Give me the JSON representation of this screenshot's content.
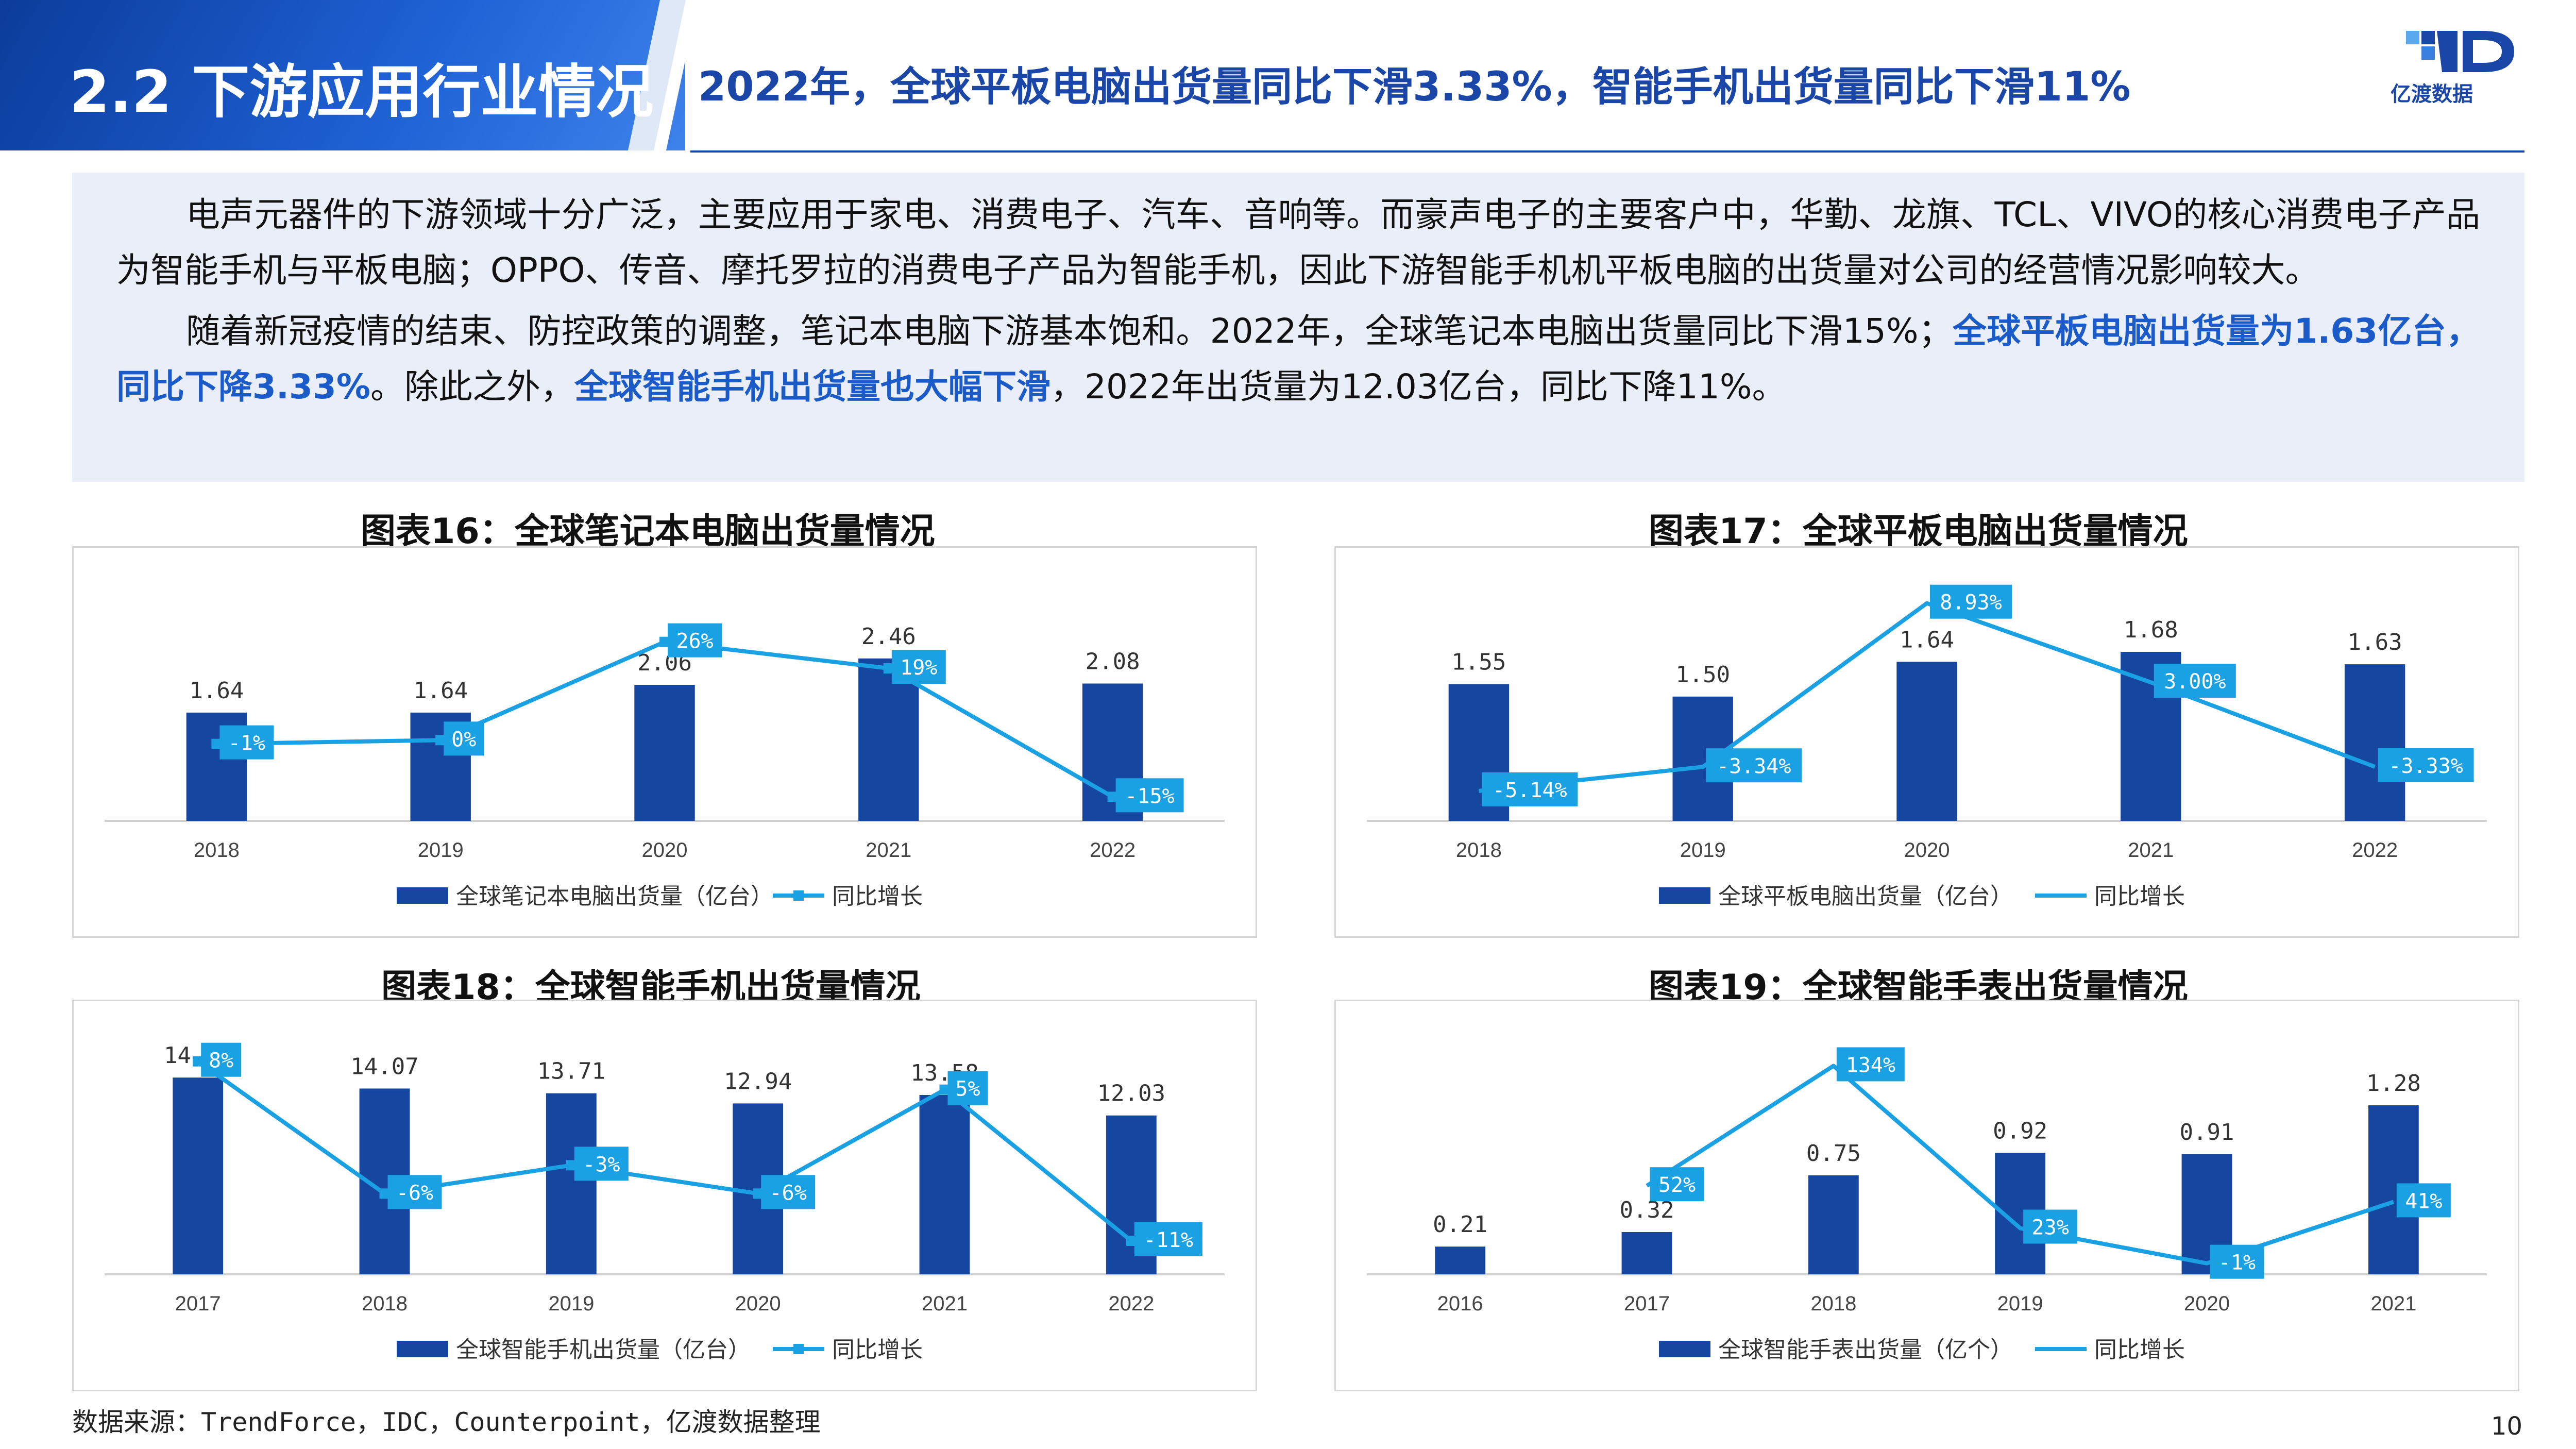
{
  "header": {
    "section_title": "2.2  下游应用行业情况",
    "headline": "2022年，全球平板电脑出货量同比下滑3.33%，智能手机出货量同比下滑11%",
    "logo_text": "亿渡数据"
  },
  "intro": {
    "p1": "电声元器件的下游领域十分广泛，主要应用于家电、消费电子、汽车、音响等。而豪声电子的主要客户中，华勤、龙旗、TCL、VIVO的核心消费电子产品为智能手机与平板电脑；OPPO、传音、摩托罗拉的消费电子产品为智能手机，因此下游智能手机机平板电脑的出货量对公司的经营情况影响较大。",
    "p2_a": "随着新冠疫情的结束、防控政策的调整，笔记本电脑下游基本饱和。2022年，全球笔记本电脑出货量同比下滑15%；",
    "p2_b": "全球平板电脑出货量为1.63亿台，同比下降3.33%",
    "p2_c": "。除此之外，",
    "p2_d": "全球智能手机出货量也大幅下滑",
    "p2_e": "，2022年出货量为12.03亿台，同比下降11%。"
  },
  "colors": {
    "bar": "#1546a0",
    "line": "#1aa1e3",
    "accent": "#1a46a8"
  },
  "chart_data": [
    {
      "type": "bar",
      "title": "图表16：全球笔记本电脑出货量情况",
      "categories": [
        "2018",
        "2019",
        "2020",
        "2021",
        "2022"
      ],
      "series": [
        {
          "name": "全球笔记本电脑出货量（亿台）",
          "values": [
            1.64,
            1.64,
            2.06,
            2.46,
            2.08
          ],
          "labels": [
            "1.64",
            "1.64",
            "2.06",
            "2.46",
            "2.08"
          ]
        },
        {
          "name": "同比增长",
          "type": "line",
          "marker": "square",
          "values": [
            -1,
            0,
            26,
            19,
            -15
          ],
          "labels": [
            "-1%",
            "0%",
            "26%",
            "19%",
            "-15%"
          ]
        }
      ],
      "ylim_bar": [
        0,
        3.2
      ],
      "ylim_line": [
        -20,
        40
      ]
    },
    {
      "type": "bar",
      "title": "图表17：全球平板电脑出货量情况",
      "categories": [
        "2018",
        "2019",
        "2020",
        "2021",
        "2022"
      ],
      "series": [
        {
          "name": "全球平板电脑出货量（亿台）",
          "values": [
            1.55,
            1.5,
            1.64,
            1.68,
            1.63
          ],
          "labels": [
            "1.55",
            "1.50",
            "1.64",
            "1.68",
            "1.63"
          ]
        },
        {
          "name": "同比增长",
          "type": "line",
          "marker": "none",
          "values": [
            -5.14,
            -3.34,
            8.93,
            3.0,
            -3.33
          ],
          "labels": [
            "-5.14%",
            "-3.34%",
            "8.93%",
            "3.00%",
            "-3.33%"
          ]
        }
      ],
      "ylim_bar": [
        1.0,
        1.85
      ],
      "ylim_line": [
        -7,
        10
      ]
    },
    {
      "type": "bar",
      "title": "图表18：全球智能手机出货量情况",
      "categories": [
        "2017",
        "2018",
        "2019",
        "2020",
        "2021",
        "2022"
      ],
      "series": [
        {
          "name": "全球智能手机出货量（亿台）",
          "values": [
            14.9,
            14.07,
            13.71,
            12.94,
            13.58,
            12.03
          ],
          "labels": [
            "14.90",
            "14.07",
            "13.71",
            "12.94",
            "13.58",
            "12.03"
          ]
        },
        {
          "name": "同比增长",
          "type": "line",
          "marker": "square",
          "values": [
            8,
            -6,
            -3,
            -6,
            5,
            -11
          ],
          "labels": [
            "8%",
            "-6%",
            "-3%",
            "-6%",
            "5%",
            "-11%"
          ]
        }
      ],
      "ylim_bar": [
        0,
        16
      ],
      "ylim_line": [
        -14,
        10
      ]
    },
    {
      "type": "bar",
      "title": "图表19：全球智能手表出货量情况",
      "categories": [
        "2016",
        "2017",
        "2018",
        "2019",
        "2020",
        "2021"
      ],
      "series": [
        {
          "name": "全球智能手表出货量（亿个）",
          "values": [
            0.21,
            0.32,
            0.75,
            0.92,
            0.91,
            1.28
          ],
          "labels": [
            "0.21",
            "0.32",
            "0.75",
            "0.92",
            "0.91",
            "1.28"
          ]
        },
        {
          "name": "同比增长",
          "type": "line",
          "marker": "none",
          "values": [
            null,
            52,
            134,
            23,
            -1,
            41
          ],
          "labels": [
            "",
            "52%",
            "134%",
            "23%",
            "-1%",
            "41%"
          ]
        }
      ],
      "ylim_bar": [
        0,
        1.6
      ],
      "ylim_line": [
        -5,
        150
      ]
    }
  ],
  "source": "数据来源：TrendForce，IDC，Counterpoint，亿渡数据整理",
  "page_number": "10"
}
